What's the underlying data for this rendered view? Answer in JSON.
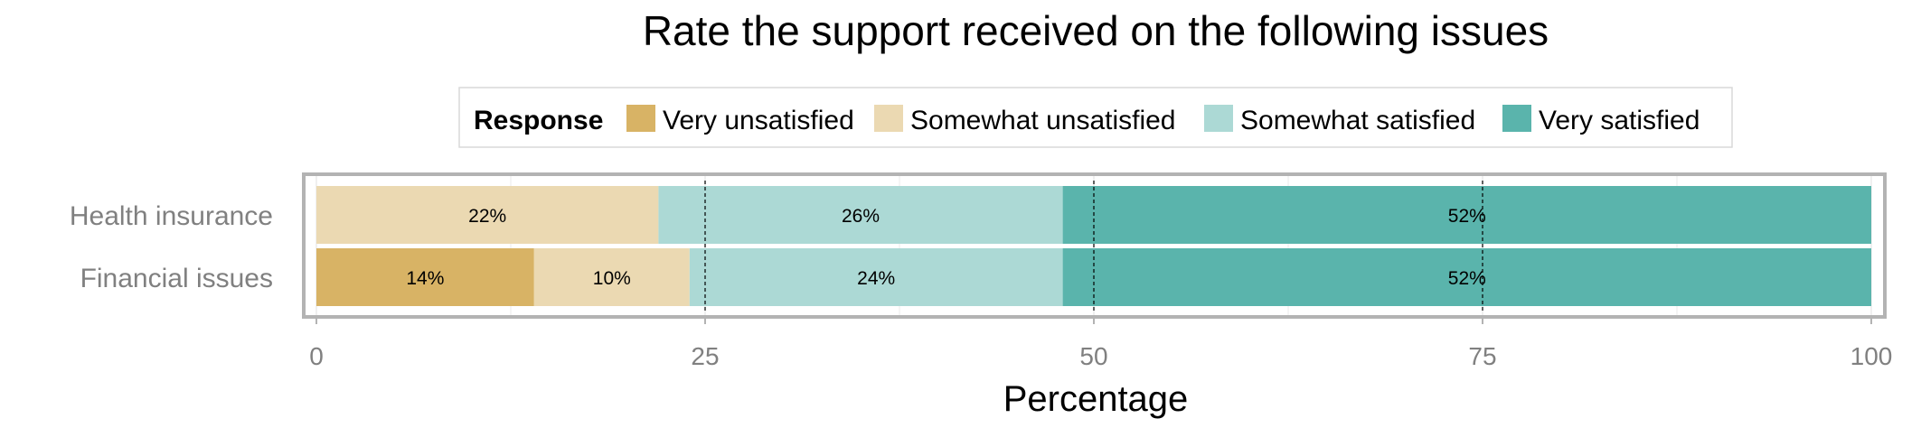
{
  "chart_data": {
    "type": "bar",
    "orientation": "horizontal",
    "stacked": true,
    "title": "Rate the support received on the following issues",
    "xlabel": "Percentage",
    "ylabel": "",
    "xlim": [
      0,
      100
    ],
    "x_ticks": [
      "0",
      "25",
      "50",
      "75",
      "100"
    ],
    "reference_lines": [
      25,
      50,
      75
    ],
    "grid": true,
    "legend": {
      "title": "Response",
      "position": "top",
      "entries": [
        "Very unsatisfied",
        "Somewhat unsatisfied",
        "Somewhat satisfied",
        "Very satisfied"
      ]
    },
    "categories": [
      "Health insurance",
      "Financial issues"
    ],
    "series": [
      {
        "name": "Very unsatisfied",
        "color": "#d8b365",
        "values": [
          0,
          14
        ],
        "labels": [
          "",
          "14%"
        ]
      },
      {
        "name": "Somewhat unsatisfied",
        "color": "#ebd9b2",
        "values": [
          22,
          10
        ],
        "labels": [
          "22%",
          "10%"
        ]
      },
      {
        "name": "Somewhat satisfied",
        "color": "#acd9d5",
        "values": [
          26,
          24
        ],
        "labels": [
          "26%",
          "24%"
        ]
      },
      {
        "name": "Very satisfied",
        "color": "#5ab4ac",
        "values": [
          52,
          52
        ],
        "labels": [
          "52%",
          "52%"
        ]
      }
    ]
  }
}
